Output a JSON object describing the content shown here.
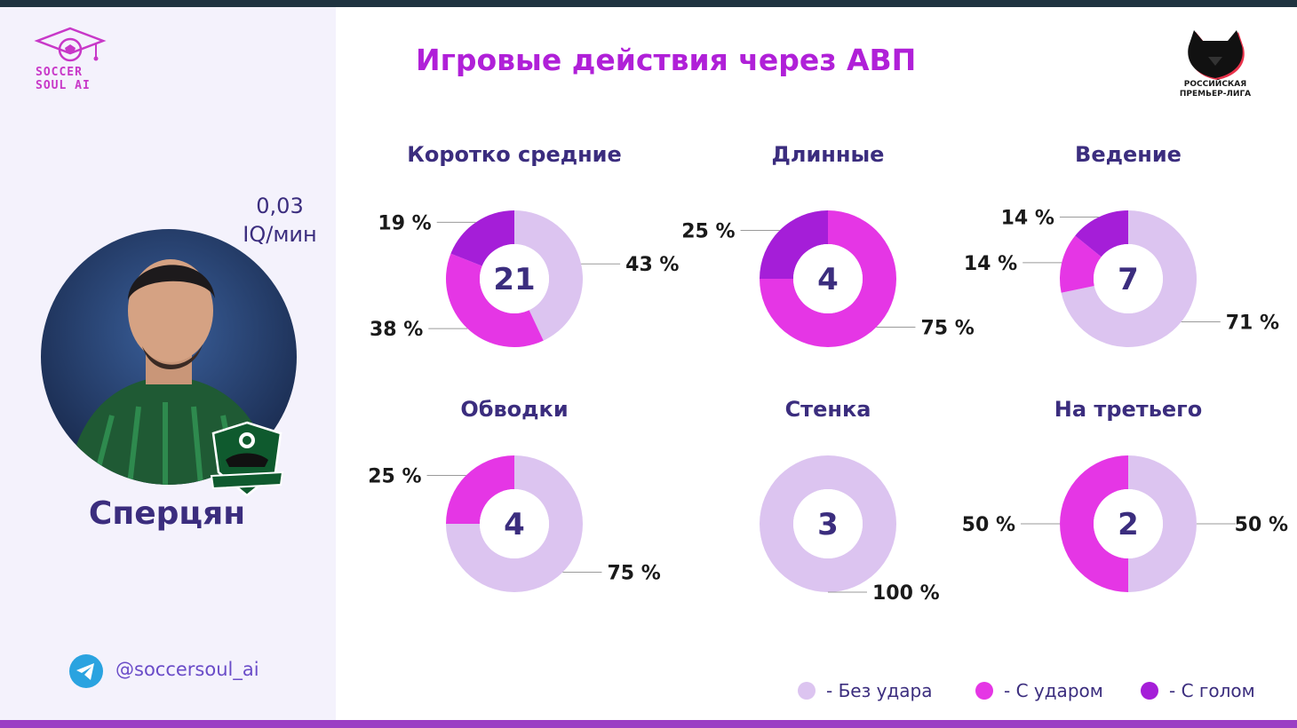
{
  "brand": {
    "line1": "SOCCER",
    "line2": "SOUL AI"
  },
  "player": {
    "iq_value": "0,03",
    "iq_unit": "IQ/мин",
    "name": "Сперцян",
    "club_badge": "Краснодар"
  },
  "social": {
    "icon": "telegram-icon",
    "handle": "@soccersoul_ai"
  },
  "title": "Игровые действия через АВП",
  "league": {
    "line1": "РОССИЙСКАЯ",
    "line2": "ПРЕМЬЕР-ЛИГА"
  },
  "colors": {
    "no_shot": "#dcc4f0",
    "with_shot": "#e536e5",
    "with_goal": "#a51ed8",
    "title": "#b020d8",
    "text": "#3b2d7e"
  },
  "legend": [
    {
      "label": "- Без удара",
      "color": "#dcc4f0"
    },
    {
      "label": "- С ударом",
      "color": "#e536e5"
    },
    {
      "label": "- С голом",
      "color": "#a51ed8"
    }
  ],
  "chart_data": [
    {
      "type": "pie",
      "title": "Коротко средние",
      "total": "21",
      "categories": [
        "Без удара",
        "С ударом",
        "С голом"
      ],
      "values": [
        43,
        38,
        19
      ],
      "labels": [
        "43 %",
        "38 %",
        "19 %"
      ]
    },
    {
      "type": "pie",
      "title": "Длинные",
      "total": "4",
      "categories": [
        "Без удара",
        "С ударом",
        "С голом"
      ],
      "values": [
        0,
        75,
        25
      ],
      "labels": [
        "",
        "75 %",
        "25 %"
      ]
    },
    {
      "type": "pie",
      "title": "Ведение",
      "total": "7",
      "categories": [
        "Без удара",
        "С ударом",
        "С голом"
      ],
      "values": [
        71,
        14,
        14
      ],
      "labels": [
        "71 %",
        "14 %",
        "14 %"
      ]
    },
    {
      "type": "pie",
      "title": "Обводки",
      "total": "4",
      "categories": [
        "Без удара",
        "С ударом",
        "С голом"
      ],
      "values": [
        75,
        25,
        0
      ],
      "labels": [
        "75 %",
        "25 %",
        ""
      ]
    },
    {
      "type": "pie",
      "title": "Стенка",
      "total": "3",
      "categories": [
        "Без удара",
        "С ударом",
        "С голом"
      ],
      "values": [
        100,
        0,
        0
      ],
      "labels": [
        "100 %",
        "",
        ""
      ]
    },
    {
      "type": "pie",
      "title": "На третьего",
      "total": "2",
      "categories": [
        "Без удара",
        "С ударом",
        "С голом"
      ],
      "values": [
        50,
        50,
        0
      ],
      "labels": [
        "50 %",
        "50 %",
        ""
      ]
    }
  ]
}
